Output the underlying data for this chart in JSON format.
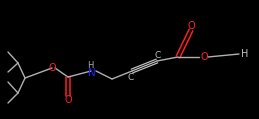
{
  "background_color": "#000000",
  "bond_color": "#b0b0b0",
  "atom_colors": {
    "O": "#ff2020",
    "N": "#2020ff",
    "C": "#c0c0c0",
    "H": "#c0c0c0"
  },
  "figsize": [
    2.59,
    1.19
  ],
  "dpi": 100,
  "xlim": [
    0,
    259
  ],
  "ylim": [
    0,
    119
  ]
}
